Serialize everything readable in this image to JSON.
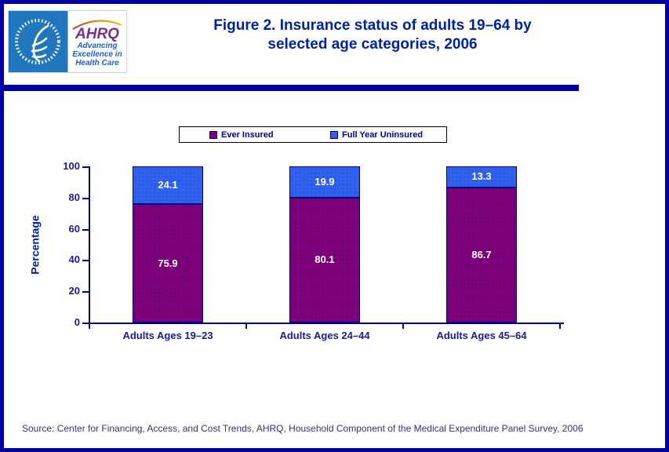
{
  "header": {
    "title_line1": "Figure 2. Insurance status of adults 19–64 by",
    "title_line2": "selected age categories, 2006",
    "logo": {
      "hhs_seal_icon": "hhs-eagle-seal",
      "ahrq_acronym": "AHRQ",
      "ahrq_tagline_line1": "Advancing",
      "ahrq_tagline_line2": "Excellence in",
      "ahrq_tagline_line3": "Health Care"
    }
  },
  "chart_data": {
    "type": "bar",
    "stacked": true,
    "title": "Figure 2. Insurance status of adults 19–64 by selected age categories, 2006",
    "categories": [
      "Adults Ages 19–23",
      "Adults Ages 24–44",
      "Adults Ages 45–64"
    ],
    "series": [
      {
        "name": "Ever Insured",
        "color": "#7D007D",
        "dot_color": "#5A005A",
        "values": [
          75.9,
          80.1,
          86.7
        ]
      },
      {
        "name": "Full Year Uninsured",
        "color": "#3061F0",
        "dot_color": "#2448B8",
        "values": [
          24.1,
          19.9,
          13.3
        ]
      }
    ],
    "xlabel": "",
    "ylabel": "Percentage",
    "ylim": [
      0,
      100
    ],
    "yticks": [
      0,
      20,
      40,
      60,
      80,
      100
    ],
    "grid": false,
    "legend_position": "top",
    "value_labels": "inside-white"
  },
  "footer": {
    "source": "Source: Center for Financing, Access, and Cost Trends, AHRQ, Household Component of the Medical Expenditure Panel Survey, 2006"
  },
  "colors": {
    "page_border": "#0000A2",
    "divider_bar": "#0000A2",
    "title_text": "#0022A2",
    "axis_text": "#1A1A99",
    "axis_line": "#000080",
    "bar_value_text": "#FFFFFF",
    "source_text": "#333377",
    "hhs_square": "#2077BE",
    "ahrq_purple": "#7B2E8E",
    "ahrq_tagline_blue": "#1C5FC8"
  }
}
